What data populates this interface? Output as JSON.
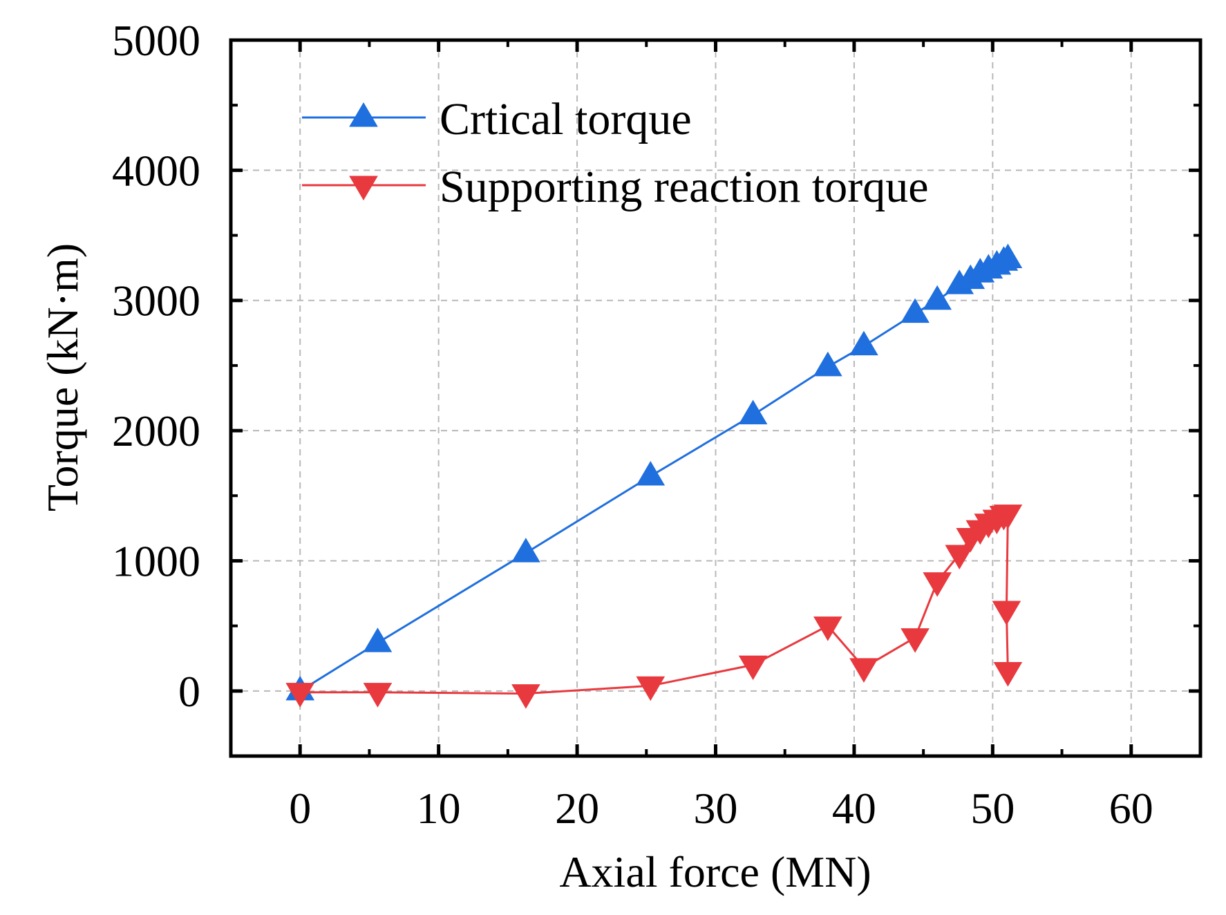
{
  "chart_data": {
    "type": "line",
    "title": "",
    "xlabel": "Axial force (MN)",
    "ylabel": "Torque (kN·m)",
    "xlim": [
      -5,
      65
    ],
    "ylim": [
      -500,
      5000
    ],
    "xticks": [
      0,
      10,
      20,
      30,
      40,
      50,
      60
    ],
    "xtick_labels": [
      "0",
      "10",
      "20",
      "30",
      "40",
      "50",
      "60"
    ],
    "yticks": [
      0,
      1000,
      2000,
      3000,
      4000,
      5000
    ],
    "ytick_labels": [
      "0",
      "1000",
      "2000",
      "3000",
      "4000",
      "5000"
    ],
    "grid": true,
    "legend_position": "top-left",
    "series": [
      {
        "name": "Crtical torque",
        "color": "#1f6fde",
        "marker": "triangle-up",
        "x": [
          0,
          5.6,
          16.3,
          25.3,
          32.7,
          38.1,
          40.7,
          44.4,
          46.0,
          47.6,
          48.4,
          49.1,
          49.7,
          50.3,
          50.8,
          51.1
        ],
        "y": [
          0,
          370,
          1060,
          1650,
          2120,
          2490,
          2650,
          2900,
          3000,
          3120,
          3160,
          3210,
          3240,
          3270,
          3300,
          3320
        ]
      },
      {
        "name": "Supporting reaction torque",
        "color": "#e8393e",
        "marker": "triangle-down",
        "x": [
          0,
          5.6,
          16.3,
          25.3,
          32.7,
          38.1,
          40.7,
          44.4,
          46.0,
          47.6,
          48.4,
          49.1,
          49.7,
          50.3,
          50.8,
          51.1,
          51.0,
          51.1
        ],
        "y": [
          -10,
          -10,
          -20,
          40,
          200,
          500,
          180,
          410,
          840,
          1050,
          1180,
          1240,
          1290,
          1320,
          1350,
          1360,
          620,
          150
        ]
      }
    ]
  }
}
